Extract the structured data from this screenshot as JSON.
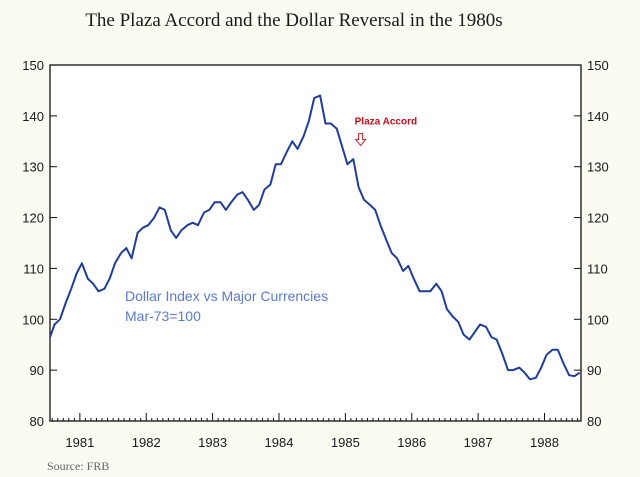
{
  "chart_data": {
    "type": "line",
    "title": "The Plaza Accord and the Dollar Reversal in the 1980s",
    "source": "Source:  FRB",
    "in_chart_label": [
      "Dollar Index vs Major Currencies",
      "Mar-73=100"
    ],
    "annotation": {
      "text": "Plaza Accord",
      "x": 1985.2,
      "y": 132
    },
    "x_range": [
      1980.55,
      1988.55
    ],
    "ylim": [
      80,
      150
    ],
    "y_ticks": [
      80,
      90,
      100,
      110,
      120,
      130,
      140,
      150
    ],
    "x_tick_labels": [
      "1981",
      "1982",
      "1983",
      "1984",
      "1985",
      "1986",
      "1987",
      "1988"
    ],
    "x_tick_positions": [
      1981,
      1982,
      1983,
      1984,
      1985,
      1986,
      1987,
      1988
    ],
    "grid": false,
    "line_color": "#1f3d99",
    "label_color": "#5b7bd0",
    "annotation_color": "#c0101a",
    "series": [
      {
        "x": [
          1980.55,
          1980.62,
          1980.7,
          1980.78,
          1980.87,
          1980.95,
          1981.03,
          1981.12,
          1981.2,
          1981.28,
          1981.37,
          1981.45,
          1981.53,
          1981.62,
          1981.7,
          1981.78,
          1981.87,
          1981.95,
          1982.03,
          1982.12,
          1982.2,
          1982.28,
          1982.37,
          1982.45,
          1982.53,
          1982.62,
          1982.7,
          1982.78,
          1982.87,
          1982.95,
          1983.03,
          1983.12,
          1983.2,
          1983.28,
          1983.37,
          1983.45,
          1983.53,
          1983.62,
          1983.7,
          1983.78,
          1983.87,
          1983.95,
          1984.03,
          1984.12,
          1984.2,
          1984.28,
          1984.37,
          1984.45,
          1984.53,
          1984.62,
          1984.7,
          1984.78,
          1984.87,
          1984.95,
          1985.03,
          1985.12,
          1985.2,
          1985.28,
          1985.37,
          1985.45,
          1985.53,
          1985.62,
          1985.7,
          1985.78,
          1985.87,
          1985.95,
          1986.03,
          1986.12,
          1986.2,
          1986.28,
          1986.37,
          1986.45,
          1986.53,
          1986.62,
          1986.7,
          1986.78,
          1986.87,
          1986.95,
          1987.03,
          1987.12,
          1987.2,
          1987.28,
          1987.37,
          1987.45,
          1987.53,
          1987.62,
          1987.7,
          1987.78,
          1987.87,
          1987.95,
          1988.03,
          1988.12,
          1988.2,
          1988.28,
          1988.37,
          1988.45,
          1988.53
        ],
        "y": [
          96.5,
          99,
          100,
          103,
          106,
          109,
          111,
          108,
          107,
          105.5,
          106,
          108,
          111,
          113,
          114,
          112,
          117,
          118,
          118.5,
          120,
          122,
          121.5,
          117.5,
          116,
          117.5,
          118.5,
          119,
          118.5,
          121,
          121.5,
          123,
          123,
          121.5,
          123,
          124.5,
          125,
          123.5,
          121.5,
          122.5,
          125.5,
          126.5,
          130.5,
          130.5,
          133,
          135,
          133.5,
          136,
          139,
          143.5,
          144,
          138.5,
          138.5,
          137.5,
          134,
          130.5,
          131.5,
          126,
          123.5,
          122.5,
          121.5,
          118.5,
          115.5,
          113,
          112,
          109.5,
          110.5,
          108,
          105.5,
          105.5,
          105.5,
          107,
          105.5,
          102,
          100.5,
          99.5,
          97,
          96,
          97.5,
          99,
          98.5,
          96.5,
          96,
          93,
          90,
          90,
          90.5,
          89.5,
          88.2,
          88.5,
          90.5,
          93,
          94,
          94,
          91.5,
          89,
          88.8,
          89.5
        ]
      }
    ]
  }
}
